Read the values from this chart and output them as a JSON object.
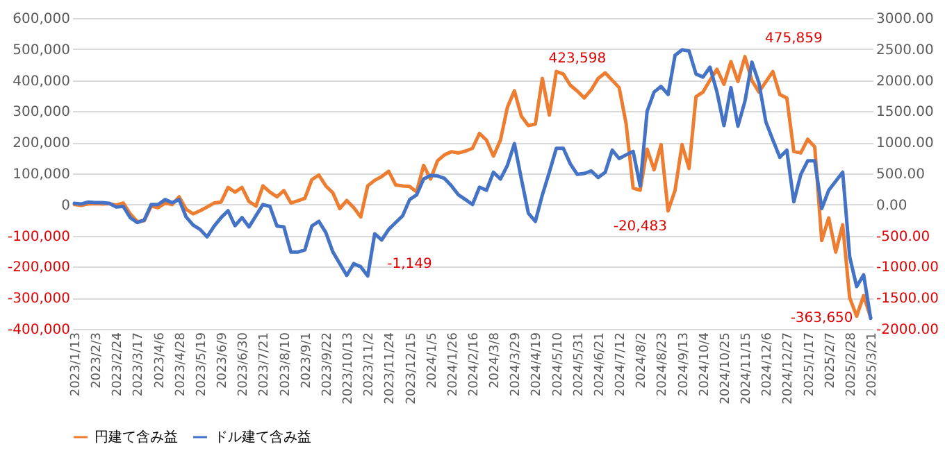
{
  "chart_data": {
    "type": "line",
    "categories": [
      "2023/1/13",
      null,
      null,
      "2023/2/3",
      null,
      null,
      "2023/2/24",
      null,
      null,
      "2023/3/17",
      null,
      null,
      "2023/4/6",
      null,
      null,
      "2023/4/28",
      null,
      null,
      "2023/5/19",
      null,
      null,
      "2023/6/9",
      null,
      null,
      "2023/6/30",
      null,
      null,
      "2023/7/21",
      null,
      null,
      "2023/8/10",
      null,
      null,
      "2023/9/1",
      null,
      null,
      "2023/9/22",
      null,
      null,
      "2023/10/13",
      null,
      null,
      "2023/11/2",
      null,
      null,
      "2023/11/24",
      null,
      null,
      "2023/12/15",
      null,
      null,
      "2024/1/5",
      null,
      null,
      "2024/1/26",
      null,
      null,
      "2024/2/16",
      null,
      null,
      "2024/3/8",
      null,
      null,
      "2024/3/29",
      null,
      null,
      "2024/4/19",
      null,
      null,
      "2024/5/10",
      null,
      null,
      "2024/5/31",
      null,
      null,
      "2024/6/21",
      null,
      null,
      "2024/7/12",
      null,
      null,
      "2024/8/2",
      null,
      null,
      "2024/8/23",
      null,
      null,
      "2024/9/13",
      null,
      null,
      "2024/10/4",
      null,
      null,
      "2024/10/25",
      null,
      null,
      "2024/11/15",
      null,
      null,
      "2024/12/6",
      null,
      null,
      "2024/12/27",
      null,
      null,
      "2025/1/17",
      null,
      null,
      "2025/2/7",
      null,
      null,
      "2025/2/28",
      null,
      null,
      "2025/3/21"
    ],
    "series": [
      {
        "name": "円建て含み益",
        "color": "#ed7d31",
        "values": [
          0,
          -3000,
          2000,
          3000,
          2000,
          3000,
          -2000,
          5000,
          -30000,
          -55000,
          -52000,
          -5000,
          -10000,
          5000,
          0,
          25000,
          -15000,
          -30000,
          -20000,
          -8000,
          5000,
          8000,
          55000,
          40000,
          55000,
          10000,
          -5000,
          60000,
          40000,
          25000,
          45000,
          5000,
          12000,
          20000,
          80000,
          95000,
          60000,
          38000,
          -13000,
          13000,
          -10000,
          -40000,
          60000,
          78000,
          90000,
          107000,
          63000,
          60000,
          58000,
          41000,
          126000,
          82000,
          141000,
          160000,
          170000,
          166000,
          172000,
          181000,
          229000,
          207000,
          156000,
          207000,
          313000,
          366000,
          284000,
          254000,
          259000,
          406000,
          288000,
          428000,
          420000,
          384000,
          365000,
          343000,
          369000,
          406000,
          423598,
          400000,
          376000,
          259000,
          53000,
          46000,
          178000,
          112000,
          193000,
          -20483,
          46000,
          193000,
          116000,
          347000,
          362000,
          400000,
          435000,
          387000,
          460000,
          396000,
          475859,
          399000,
          362000,
          395000,
          428000,
          354000,
          343000,
          171000,
          166000,
          210000,
          185000,
          -116000,
          -43000,
          -153000,
          -65000,
          -300000,
          -359000,
          -293000,
          -363650
        ]
      },
      {
        "name": "ドル建て含み益",
        "color": "#4472c4",
        "axis": "y2",
        "values": [
          20,
          10,
          40,
          30,
          30,
          20,
          -40,
          -30,
          -210,
          -290,
          -250,
          0,
          0,
          80,
          30,
          80,
          -200,
          -330,
          -400,
          -520,
          -350,
          -210,
          -100,
          -340,
          -210,
          -360,
          -180,
          0,
          -30,
          -345,
          -360,
          -765,
          -765,
          -730,
          -345,
          -270,
          -450,
          -760,
          -950,
          -1140,
          -950,
          -1000,
          -1149,
          -470,
          -570,
          -400,
          -290,
          -180,
          80,
          155,
          410,
          470,
          460,
          420,
          300,
          155,
          80,
          0,
          280,
          230,
          520,
          410,
          630,
          980,
          410,
          -140,
          -270,
          155,
          520,
          905,
          905,
          655,
          485,
          500,
          540,
          435,
          520,
          875,
          740,
          800,
          855,
          300,
          1500,
          1810,
          1900,
          1770,
          2400,
          2490,
          2470,
          2100,
          2050,
          2210,
          1810,
          1270,
          1880,
          1260,
          1660,
          2290,
          1960,
          1330,
          1040,
          760,
          875,
          45,
          485,
          705,
          705,
          -65,
          230,
          375,
          520,
          -840,
          -1320,
          -1130,
          -1830
        ]
      }
    ],
    "ylim": [
      -400000,
      600000
    ],
    "yticks": [
      {
        "value": -400000,
        "label": "-400,000"
      },
      {
        "value": -300000,
        "label": "-300,000"
      },
      {
        "value": -200000,
        "label": "-200,000"
      },
      {
        "value": -100000,
        "label": "-100,000"
      },
      0,
      {
        "value": 100000,
        "label": "100,000"
      },
      {
        "value": 200000,
        "label": "200,000"
      },
      {
        "value": 300000,
        "label": "300,000"
      },
      {
        "value": 400000,
        "label": "400,000"
      },
      {
        "value": 500000,
        "label": "500,000"
      },
      {
        "value": 600000,
        "label": "600,000"
      }
    ],
    "y2lim": [
      -2000,
      3000
    ],
    "y2ticks": [
      {
        "value": -2000,
        "label": "-2000.00"
      },
      {
        "value": -1500,
        "label": "-1500.00"
      },
      {
        "value": -1000,
        "label": "-1000.00"
      },
      {
        "value": -500,
        "label": "-500.00"
      },
      {
        "value": 0,
        "label": "0.00"
      },
      {
        "value": 500,
        "label": "500.00"
      },
      {
        "value": 1000,
        "label": "1000.00"
      },
      {
        "value": 1500,
        "label": "1500.00"
      },
      {
        "value": 2000,
        "label": "2000.00"
      },
      {
        "value": 2500,
        "label": "2500.00"
      },
      {
        "value": 3000,
        "label": "3000.00"
      }
    ],
    "annotations": [
      "423,598",
      "475,859",
      "-20,483",
      "-363,650",
      "-1,149"
    ],
    "grid": "y",
    "legend": "bottom"
  }
}
